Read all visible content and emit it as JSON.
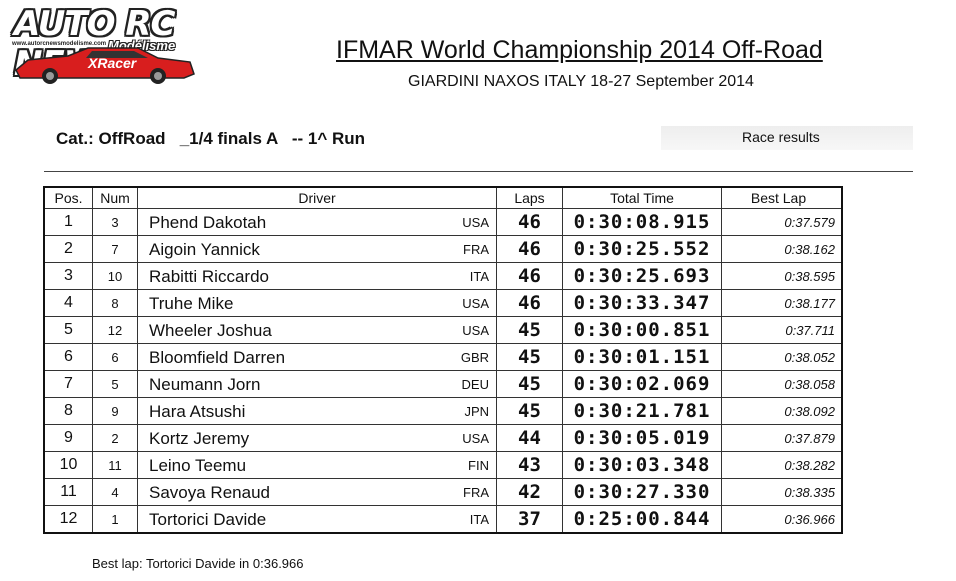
{
  "logo": {
    "title": "AUTO RC NEWS",
    "url": "www.autorcnewsmodelisme.com",
    "subtitle": "Modélisme",
    "badge": "XRacer"
  },
  "header": {
    "title": "IFMAR World Championship 2014 Off-Road",
    "subtitle": "GIARDINI NAXOS ITALY 18-27 September 2014"
  },
  "category": "Cat.: OffRoad   _1/4 finals A   -- 1^ Run",
  "results_label": "Race results",
  "table": {
    "headers": [
      "Pos.",
      "Num",
      "Driver",
      "Laps",
      "Total Time",
      "Best Lap"
    ],
    "rows": [
      {
        "pos": "1",
        "num": "3",
        "driver": "Phend Dakotah",
        "nat": "USA",
        "laps": "46",
        "time": "0:30:08.915",
        "best": "0:37.579"
      },
      {
        "pos": "2",
        "num": "7",
        "driver": "Aigoin Yannick",
        "nat": "FRA",
        "laps": "46",
        "time": "0:30:25.552",
        "best": "0:38.162"
      },
      {
        "pos": "3",
        "num": "10",
        "driver": "Rabitti Riccardo",
        "nat": "ITA",
        "laps": "46",
        "time": "0:30:25.693",
        "best": "0:38.595"
      },
      {
        "pos": "4",
        "num": "8",
        "driver": "Truhe Mike",
        "nat": "USA",
        "laps": "46",
        "time": "0:30:33.347",
        "best": "0:38.177"
      },
      {
        "pos": "5",
        "num": "12",
        "driver": "Wheeler Joshua",
        "nat": "USA",
        "laps": "45",
        "time": "0:30:00.851",
        "best": "0:37.711"
      },
      {
        "pos": "6",
        "num": "6",
        "driver": "Bloomfield Darren",
        "nat": "GBR",
        "laps": "45",
        "time": "0:30:01.151",
        "best": "0:38.052"
      },
      {
        "pos": "7",
        "num": "5",
        "driver": "Neumann Jorn",
        "nat": "DEU",
        "laps": "45",
        "time": "0:30:02.069",
        "best": "0:38.058"
      },
      {
        "pos": "8",
        "num": "9",
        "driver": "Hara Atsushi",
        "nat": "JPN",
        "laps": "45",
        "time": "0:30:21.781",
        "best": "0:38.092"
      },
      {
        "pos": "9",
        "num": "2",
        "driver": "Kortz Jeremy",
        "nat": "USA",
        "laps": "44",
        "time": "0:30:05.019",
        "best": "0:37.879"
      },
      {
        "pos": "10",
        "num": "11",
        "driver": "Leino Teemu",
        "nat": "FIN",
        "laps": "43",
        "time": "0:30:03.348",
        "best": "0:38.282"
      },
      {
        "pos": "11",
        "num": "4",
        "driver": "Savoya Renaud",
        "nat": "FRA",
        "laps": "42",
        "time": "0:30:27.330",
        "best": "0:38.335"
      },
      {
        "pos": "12",
        "num": "1",
        "driver": "Tortorici Davide",
        "nat": "ITA",
        "laps": "37",
        "time": "0:25:00.844",
        "best": "0:36.966"
      }
    ]
  },
  "footer": {
    "best_lap": "Best lap:  Tortorici Davide in 0:36.966"
  },
  "colors": {
    "logo_red": "#d81e1e",
    "text": "#111111"
  }
}
